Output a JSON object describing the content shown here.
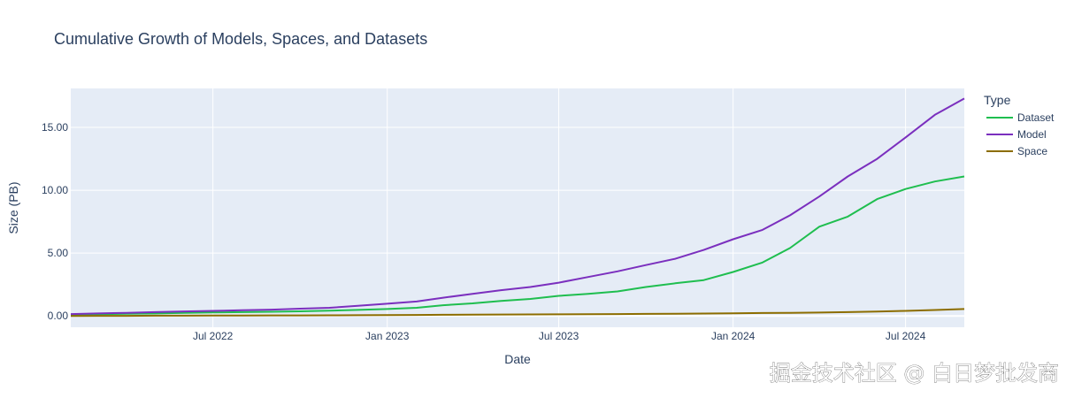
{
  "chart_data": {
    "type": "line",
    "title": "Cumulative Growth of Models, Spaces, and Datasets",
    "xlabel": "Date",
    "ylabel": "Size (PB)",
    "x_ticks": [
      "2022-07-01",
      "2023-01-01",
      "2023-07-01",
      "2024-01-01",
      "2024-07-01"
    ],
    "x_tick_labels": [
      "Jul 2022",
      "Jan 2023",
      "Jul 2023",
      "Jan 2024",
      "Jul 2024"
    ],
    "xlim": [
      "2022-02-01",
      "2024-09-01"
    ],
    "y_ticks": [
      0,
      5,
      10,
      15
    ],
    "y_tick_labels": [
      "0.00",
      "5.00",
      "10.00",
      "15.00"
    ],
    "ylim": [
      -0.9,
      18.1
    ],
    "grid": true,
    "legend": {
      "title": "Type",
      "position": "right"
    },
    "x": [
      "2022-02-01",
      "2022-03-01",
      "2022-04-01",
      "2022-05-01",
      "2022-06-01",
      "2022-07-01",
      "2022-08-01",
      "2022-09-01",
      "2022-10-01",
      "2022-11-01",
      "2022-12-01",
      "2023-01-01",
      "2023-02-01",
      "2023-03-01",
      "2023-04-01",
      "2023-05-01",
      "2023-06-01",
      "2023-07-01",
      "2023-08-01",
      "2023-09-01",
      "2023-10-01",
      "2023-11-01",
      "2023-12-01",
      "2024-01-01",
      "2024-02-01",
      "2024-03-01",
      "2024-04-01",
      "2024-05-01",
      "2024-06-01",
      "2024-07-01",
      "2024-08-01",
      "2024-09-01"
    ],
    "series": [
      {
        "name": "Dataset",
        "color": "#1fbe4f",
        "values": [
          0.12,
          0.14,
          0.17,
          0.2,
          0.24,
          0.28,
          0.3,
          0.33,
          0.37,
          0.42,
          0.48,
          0.55,
          0.65,
          0.85,
          1.0,
          1.2,
          1.35,
          1.6,
          1.75,
          1.95,
          2.3,
          2.6,
          2.85,
          3.5,
          4.25,
          5.4,
          7.1,
          7.9,
          9.3,
          10.1,
          10.7,
          11.1
        ]
      },
      {
        "name": "Model",
        "color": "#7b2fbe",
        "values": [
          0.15,
          0.2,
          0.25,
          0.3,
          0.36,
          0.4,
          0.45,
          0.5,
          0.58,
          0.65,
          0.8,
          0.97,
          1.15,
          1.45,
          1.75,
          2.05,
          2.3,
          2.65,
          3.1,
          3.55,
          4.05,
          4.55,
          5.25,
          6.1,
          6.85,
          8.0,
          9.5,
          11.1,
          12.5,
          14.2,
          16.0,
          17.3
        ]
      },
      {
        "name": "Space",
        "color": "#8c6d00",
        "values": [
          0.0,
          0.01,
          0.01,
          0.02,
          0.02,
          0.03,
          0.03,
          0.04,
          0.04,
          0.05,
          0.06,
          0.07,
          0.08,
          0.09,
          0.1,
          0.11,
          0.12,
          0.13,
          0.14,
          0.15,
          0.16,
          0.18,
          0.19,
          0.21,
          0.23,
          0.25,
          0.27,
          0.3,
          0.35,
          0.4,
          0.47,
          0.55
        ]
      }
    ]
  },
  "watermark": "掘金技术社区 @ 白日梦批发商",
  "colors": {
    "plot_bg": "#e5ecf6",
    "grid": "#ffffff",
    "text": "#2a3f5f"
  }
}
